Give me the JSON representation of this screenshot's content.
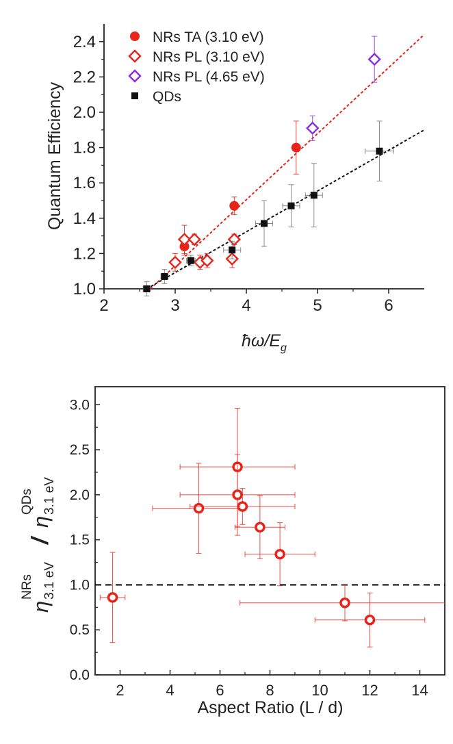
{
  "chart_data": [
    {
      "type": "scatter",
      "xlabel": "ħω/E",
      "xlabel_sub": "g",
      "ylabel": "Quantum Efficiency",
      "xlim": [
        2,
        6.5
      ],
      "ylim": [
        1.0,
        2.5
      ],
      "xticks": [
        "2",
        "3",
        "4",
        "5",
        "6"
      ],
      "yticks": [
        "1.0",
        "1.2",
        "1.4",
        "1.6",
        "1.8",
        "2.0",
        "2.2",
        "2.4"
      ],
      "legend_position": "top-left",
      "series": [
        {
          "name": "NRs TA (3.10 eV)",
          "marker": "circle-filled",
          "color": "#e8231a",
          "x": [
            3.13,
            3.83,
            4.7
          ],
          "y": [
            1.24,
            1.47,
            1.8
          ],
          "yerr": [
            0.05,
            0.05,
            0.15
          ]
        },
        {
          "name": "NRs PL (3.10 eV)",
          "marker": "diamond-open",
          "color": "#e8231a",
          "x": [
            3.0,
            3.13,
            3.27,
            3.35,
            3.45,
            3.8,
            3.83
          ],
          "y": [
            1.15,
            1.28,
            1.28,
            1.15,
            1.16,
            1.17,
            1.28
          ],
          "yerr": [
            0.05,
            0.08,
            0.03,
            0.04,
            0.04,
            0.05,
            0.03
          ]
        },
        {
          "name": "NRs PL (4.65 eV)",
          "marker": "diamond-open",
          "color": "#8b2be2",
          "x": [
            4.93,
            5.8
          ],
          "y": [
            1.91,
            2.3
          ],
          "yerr": [
            0.07,
            0.13
          ]
        },
        {
          "name": "QDs",
          "marker": "square-filled",
          "color": "#111111",
          "x": [
            2.6,
            2.85,
            3.22,
            3.8,
            4.25,
            4.63,
            4.95,
            5.87
          ],
          "y": [
            1.0,
            1.07,
            1.16,
            1.22,
            1.37,
            1.47,
            1.53,
            1.78
          ],
          "yerr": [
            0.04,
            0.04,
            0.03,
            0.05,
            0.13,
            0.12,
            0.18,
            0.17
          ],
          "xerr": [
            0.05,
            0.05,
            0.06,
            0.12,
            0.12,
            0.12,
            0.12,
            0.2
          ]
        }
      ],
      "fits": [
        {
          "name": "NRs fit",
          "color": "#e8231a",
          "x": [
            2.65,
            6.5
          ],
          "y": [
            1.0,
            2.44
          ]
        },
        {
          "name": "QDs fit",
          "color": "#111111",
          "x": [
            2.6,
            6.5
          ],
          "y": [
            1.0,
            1.9
          ]
        }
      ]
    },
    {
      "type": "scatter",
      "xlabel": "Aspect Ratio (L / d)",
      "ylabel_parts": {
        "eta": "η",
        "sub": "3.1 eV",
        "sup_num": "NRs",
        "sup_den": "QDs",
        "slash": "/"
      },
      "xlim": [
        1,
        15
      ],
      "ylim": [
        0.0,
        3.2
      ],
      "xticks": [
        "2",
        "4",
        "6",
        "8",
        "10",
        "12",
        "14"
      ],
      "yticks": [
        "0.0",
        "0.5",
        "1.0",
        "1.5",
        "2.0",
        "2.5",
        "3.0"
      ],
      "reference_line": {
        "y": 1.0,
        "style": "dashed",
        "color": "#000000"
      },
      "series": [
        {
          "name": "NRs / QDs ratio",
          "marker": "circle-open",
          "color": "#e8231a",
          "points": [
            {
              "x": 1.7,
              "y": 0.86,
              "xlo": 1.2,
              "xhi": 2.2,
              "ylo": 0.36,
              "yhi": 1.36
            },
            {
              "x": 5.15,
              "y": 1.85,
              "xlo": 3.3,
              "xhi": 6.9,
              "ylo": 1.35,
              "yhi": 2.35
            },
            {
              "x": 6.7,
              "y": 2.31,
              "xlo": 4.4,
              "xhi": 9.0,
              "ylo": 1.65,
              "yhi": 2.96
            },
            {
              "x": 6.7,
              "y": 2.0,
              "xlo": 4.4,
              "xhi": 9.0,
              "ylo": 1.55,
              "yhi": 2.45
            },
            {
              "x": 6.9,
              "y": 1.87,
              "xlo": 4.8,
              "xhi": 9.0,
              "ylo": 1.67,
              "yhi": 2.07
            },
            {
              "x": 7.6,
              "y": 1.64,
              "xlo": 6.6,
              "xhi": 8.6,
              "ylo": 1.29,
              "yhi": 1.99
            },
            {
              "x": 8.4,
              "y": 1.34,
              "xlo": 7.0,
              "xhi": 9.8,
              "ylo": 0.99,
              "yhi": 1.69
            },
            {
              "x": 11.0,
              "y": 0.8,
              "xlo": 6.8,
              "xhi": 15.2,
              "ylo": 0.6,
              "yhi": 1.0
            },
            {
              "x": 12.0,
              "y": 0.61,
              "xlo": 9.8,
              "xhi": 14.2,
              "ylo": 0.31,
              "yhi": 0.91
            }
          ]
        }
      ]
    }
  ]
}
